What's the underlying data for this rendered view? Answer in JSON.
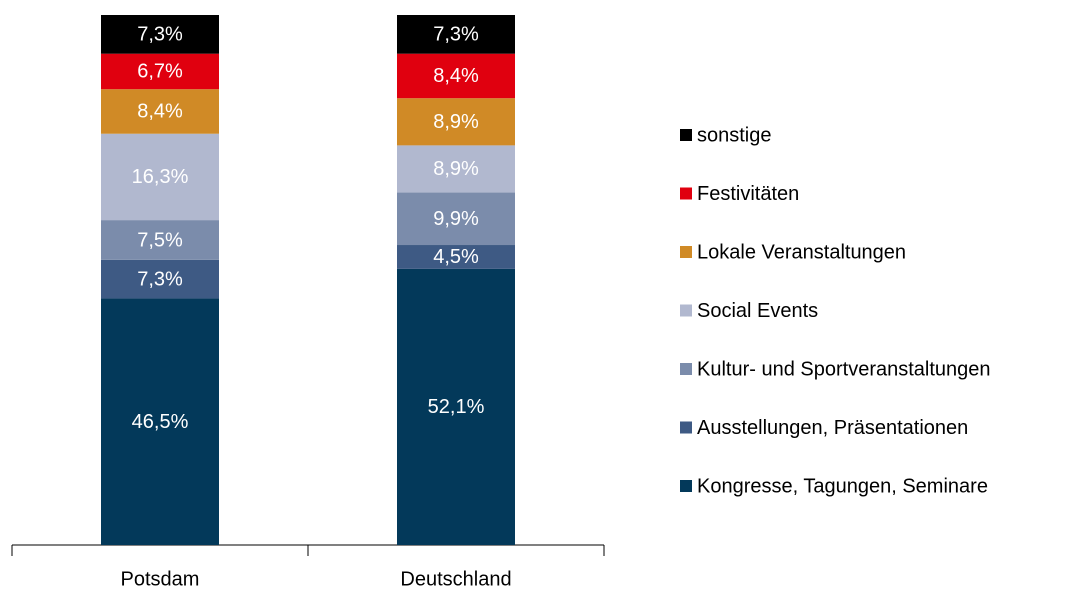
{
  "chart_data": {
    "type": "stacked_bar",
    "categories": [
      "Potsdam",
      "Deutschland"
    ],
    "series": [
      {
        "name": "Kongresse, Tagungen, Seminare",
        "color": "#03395a",
        "values": [
          46.5,
          52.1
        ],
        "value_labels": [
          "46,5%",
          "52,1%"
        ]
      },
      {
        "name": "Ausstellungen, Präsentationen",
        "color": "#3e5a84",
        "values": [
          7.3,
          4.5
        ],
        "value_labels": [
          "7,3%",
          "4,5%"
        ]
      },
      {
        "name": "Kultur- und Sportveranstaltungen",
        "color": "#7b8cab",
        "values": [
          7.5,
          9.9
        ],
        "value_labels": [
          "7,5%",
          "9,9%"
        ]
      },
      {
        "name": "Social Events",
        "color": "#b1b8cf",
        "values": [
          16.3,
          8.9
        ],
        "value_labels": [
          "16,3%",
          "8,9%"
        ]
      },
      {
        "name": "Lokale Veranstaltungen",
        "color": "#d08a26",
        "values": [
          8.4,
          8.9
        ],
        "value_labels": [
          "8,4%",
          "8,9%"
        ]
      },
      {
        "name": "Festivitäten",
        "color": "#e0000f",
        "values": [
          6.7,
          8.4
        ],
        "value_labels": [
          "6,7%",
          "8,4%"
        ]
      },
      {
        "name": "sonstige",
        "color": "#000000",
        "values": [
          7.3,
          7.3
        ],
        "value_labels": [
          "7,3%",
          "7,3%"
        ]
      }
    ],
    "legend": "right"
  }
}
